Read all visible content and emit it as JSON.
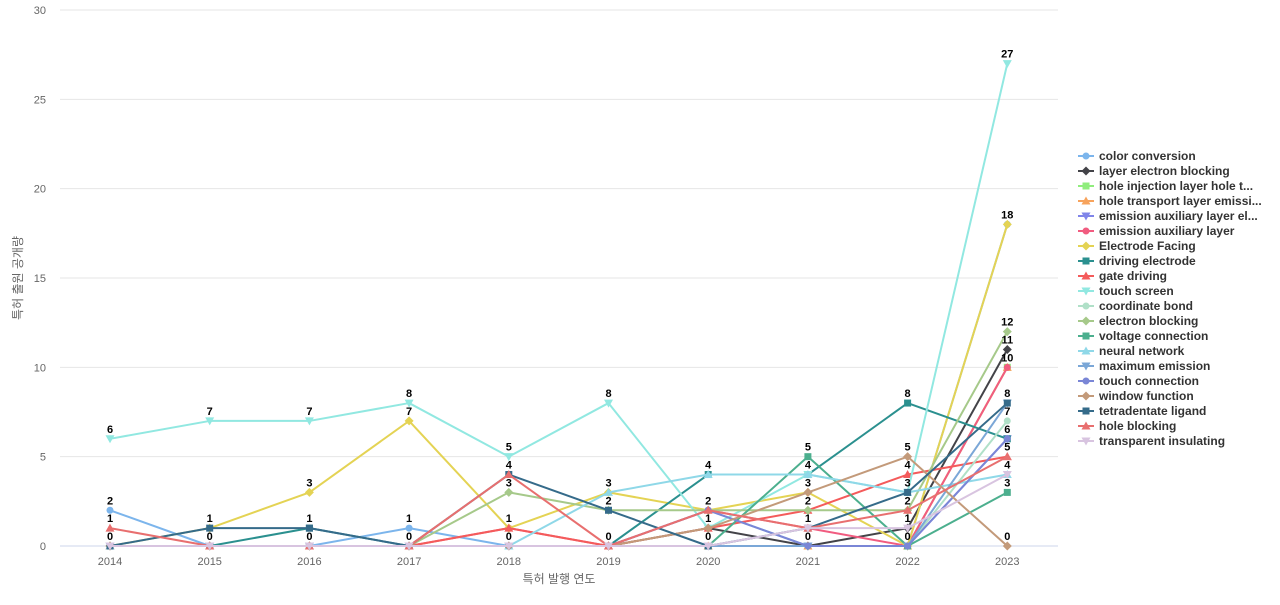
{
  "chart_data": {
    "type": "line",
    "xlabel": "특허 발행 연도",
    "ylabel": "특허 출원 공개량",
    "ylim": [
      0,
      30
    ],
    "yticks": [
      0,
      5,
      10,
      15,
      20,
      25,
      30
    ],
    "categories": [
      "2014",
      "2015",
      "2016",
      "2017",
      "2018",
      "2019",
      "2020",
      "2021",
      "2022",
      "2023"
    ],
    "grid": "horizontal",
    "legend_position": "right",
    "series": [
      {
        "name": "color conversion",
        "color": "#7cb5ec",
        "marker": "circle",
        "values": [
          2,
          0,
          0,
          1,
          0,
          0,
          2,
          0,
          0,
          18
        ]
      },
      {
        "name": "layer electron blocking",
        "color": "#434348",
        "marker": "diamond",
        "values": [
          0,
          0,
          0,
          0,
          0,
          0,
          1,
          0,
          1,
          11
        ]
      },
      {
        "name": "hole injection layer hole t...",
        "color": "#90ed7d",
        "marker": "square",
        "values": [
          0,
          0,
          0,
          0,
          0,
          0,
          0,
          0,
          0,
          10
        ]
      },
      {
        "name": "hole transport layer emissi...",
        "color": "#f7a35c",
        "marker": "triangle",
        "values": [
          0,
          0,
          0,
          0,
          0,
          0,
          0,
          0,
          0,
          10
        ]
      },
      {
        "name": "emission auxiliary layer el...",
        "color": "#8085e9",
        "marker": "triangle-down",
        "values": [
          0,
          0,
          0,
          0,
          0,
          0,
          0,
          0,
          0,
          6
        ]
      },
      {
        "name": "emission auxiliary layer",
        "color": "#f15c80",
        "marker": "circle",
        "values": [
          0,
          0,
          0,
          0,
          1,
          0,
          2,
          1,
          0,
          10
        ]
      },
      {
        "name": "Electrode Facing",
        "color": "#e4d354",
        "marker": "diamond",
        "values": [
          0,
          1,
          3,
          7,
          1,
          3,
          2,
          3,
          0,
          18
        ]
      },
      {
        "name": "driving electrode",
        "color": "#2b908f",
        "marker": "square",
        "values": [
          0,
          0,
          1,
          0,
          0,
          0,
          4,
          4,
          8,
          6
        ]
      },
      {
        "name": "gate driving",
        "color": "#f45b5b",
        "marker": "triangle",
        "values": [
          0,
          0,
          0,
          0,
          1,
          0,
          1,
          2,
          4,
          5
        ]
      },
      {
        "name": "touch screen",
        "color": "#91e8e1",
        "marker": "triangle-down",
        "values": [
          6,
          7,
          7,
          8,
          5,
          8,
          1,
          4,
          3,
          27
        ]
      },
      {
        "name": "coordinate bond",
        "color": "#b0e0c8",
        "marker": "circle",
        "values": [
          0,
          0,
          0,
          0,
          0,
          0,
          0,
          0,
          0,
          7
        ]
      },
      {
        "name": "electron blocking",
        "color": "#a6c98a",
        "marker": "diamond",
        "values": [
          0,
          0,
          0,
          0,
          3,
          2,
          2,
          2,
          2,
          12
        ]
      },
      {
        "name": "voltage connection",
        "color": "#4caf8e",
        "marker": "square",
        "values": [
          0,
          0,
          0,
          0,
          0,
          0,
          0,
          5,
          0,
          3
        ]
      },
      {
        "name": "neural network",
        "color": "#8fd8e8",
        "marker": "triangle",
        "values": [
          0,
          0,
          0,
          0,
          0,
          3,
          4,
          4,
          3,
          4
        ]
      },
      {
        "name": "maximum emission",
        "color": "#7ba7d7",
        "marker": "triangle-down",
        "values": [
          0,
          0,
          0,
          0,
          0,
          0,
          0,
          0,
          0,
          8
        ]
      },
      {
        "name": "touch connection",
        "color": "#7a86d6",
        "marker": "circle",
        "values": [
          0,
          0,
          0,
          0,
          0,
          0,
          2,
          0,
          0,
          6
        ]
      },
      {
        "name": "window function",
        "color": "#c39a7a",
        "marker": "diamond",
        "values": [
          0,
          0,
          0,
          0,
          0,
          0,
          1,
          3,
          5,
          0
        ]
      },
      {
        "name": "tetradentate ligand",
        "color": "#356b8a",
        "marker": "square",
        "values": [
          0,
          1,
          1,
          0,
          4,
          2,
          0,
          1,
          3,
          8
        ]
      },
      {
        "name": "hole blocking",
        "color": "#e86f6f",
        "marker": "triangle",
        "values": [
          1,
          0,
          0,
          0,
          4,
          0,
          2,
          1,
          2,
          5
        ]
      },
      {
        "name": "transparent insulating",
        "color": "#d8c4e0",
        "marker": "triangle-down",
        "values": [
          0,
          0,
          0,
          0,
          0,
          0,
          0,
          1,
          1,
          4
        ]
      }
    ]
  }
}
